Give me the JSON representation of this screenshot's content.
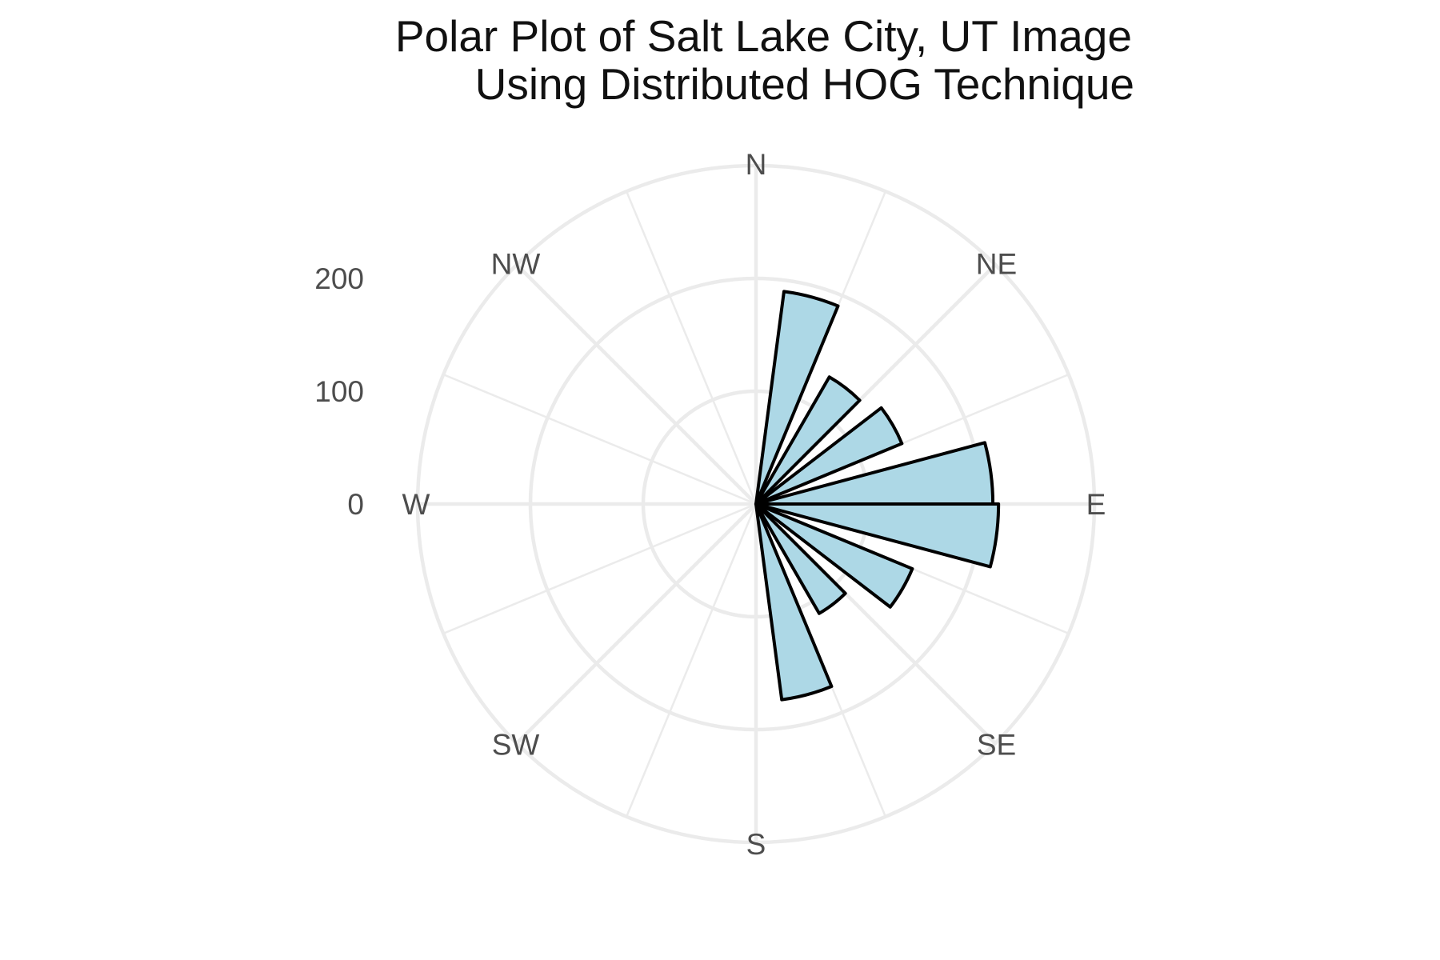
{
  "chart_data": {
    "type": "polar-bar",
    "title": [
      "Polar Plot of Salt Lake City, UT Image",
      "Using Distributed HOG Technique"
    ],
    "xlabel": "",
    "ylabel": "",
    "directions": [
      "N",
      "NE",
      "E",
      "SE",
      "S",
      "SW",
      "W",
      "NW"
    ],
    "radial_ticks": [
      0,
      100,
      200
    ],
    "rlim": [
      0,
      300
    ],
    "grid": true,
    "bins": [
      {
        "start": 7.5,
        "end": 22.5,
        "value": 190
      },
      {
        "start": 30,
        "end": 45,
        "value": 130
      },
      {
        "start": 52.5,
        "end": 67.5,
        "value": 140
      },
      {
        "start": 75,
        "end": 90,
        "value": 210
      },
      {
        "start": 90,
        "end": 105,
        "value": 215
      },
      {
        "start": 112.5,
        "end": 127.5,
        "value": 150
      },
      {
        "start": 135,
        "end": 150,
        "value": 112
      },
      {
        "start": 157.5,
        "end": 172.5,
        "value": 175
      }
    ],
    "colors": {
      "bar_fill": "#add8e6",
      "bar_stroke": "#000000",
      "grid": "#ebebeb",
      "label": "#4d4d4d",
      "title": "#111111"
    }
  }
}
